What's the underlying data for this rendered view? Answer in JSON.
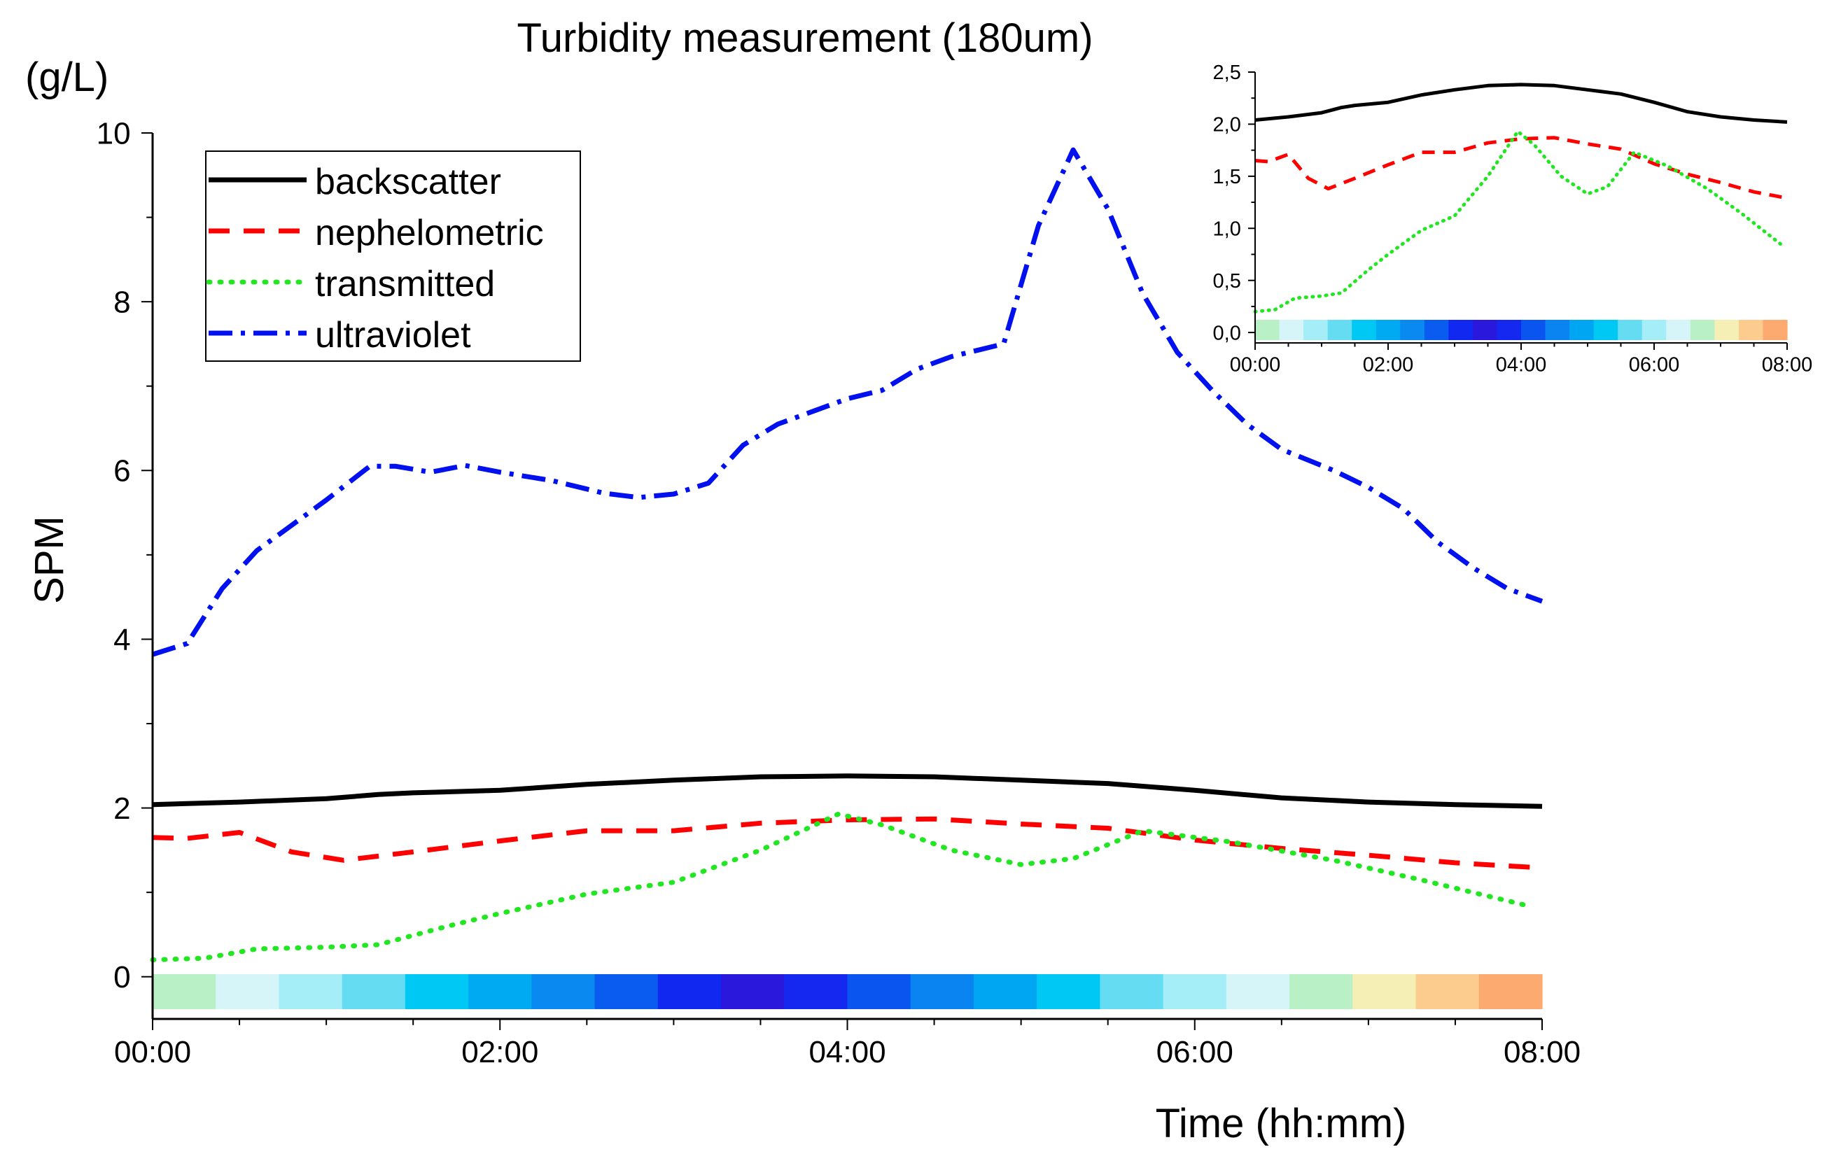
{
  "chart_data": [
    {
      "type": "line",
      "title": "Turbidity measurement (180um)",
      "ylabel": "SPM",
      "yunit": "(g/L)",
      "xlabel": "Time (hh:mm)",
      "xlim": [
        0,
        8
      ],
      "ylim": [
        -0.5,
        10
      ],
      "xticks": [
        0,
        2,
        4,
        6,
        8
      ],
      "xtick_labels": [
        "00:00",
        "02:00",
        "04:00",
        "06:00",
        "08:00"
      ],
      "yticks": [
        0,
        2,
        4,
        6,
        8,
        10
      ],
      "ytick_labels": [
        "0",
        "2",
        "4",
        "6",
        "8",
        "10"
      ],
      "legend_position": "top-left",
      "series": [
        {
          "name": "backscatter",
          "color": "#000000",
          "dash": "solid",
          "x": [
            0,
            0.5,
            1,
            1.3,
            1.5,
            2,
            2.5,
            3,
            3.5,
            4,
            4.5,
            5,
            5.5,
            6,
            6.5,
            7,
            7.5,
            8
          ],
          "values": [
            2.04,
            2.07,
            2.11,
            2.16,
            2.18,
            2.21,
            2.28,
            2.33,
            2.37,
            2.38,
            2.37,
            2.33,
            2.29,
            2.21,
            2.12,
            2.07,
            2.04,
            2.02
          ]
        },
        {
          "name": "nephelometric",
          "color": "#ff0000",
          "dash": "dash",
          "x": [
            0,
            0.2,
            0.5,
            0.8,
            1.1,
            1.5,
            2,
            2.5,
            3,
            3.5,
            4,
            4.5,
            5,
            5.5,
            6,
            6.5,
            7,
            7.5,
            8
          ],
          "values": [
            1.65,
            1.64,
            1.71,
            1.48,
            1.38,
            1.48,
            1.61,
            1.73,
            1.73,
            1.82,
            1.86,
            1.87,
            1.81,
            1.76,
            1.62,
            1.52,
            1.44,
            1.35,
            1.29
          ]
        },
        {
          "name": "transmitted",
          "color": "#22e622",
          "dash": "dot",
          "x": [
            0,
            0.3,
            0.6,
            1,
            1.3,
            1.7,
            2,
            2.5,
            3,
            3.5,
            3.95,
            4.2,
            4.6,
            5,
            5.3,
            5.7,
            6.2,
            6.8,
            7.3,
            7.9
          ],
          "values": [
            0.2,
            0.22,
            0.33,
            0.35,
            0.38,
            0.6,
            0.75,
            0.98,
            1.12,
            1.5,
            1.93,
            1.8,
            1.5,
            1.33,
            1.4,
            1.73,
            1.6,
            1.38,
            1.15,
            0.85
          ]
        },
        {
          "name": "ultraviolet",
          "color": "#0010ee",
          "dash": "dashdot",
          "x": [
            0,
            0.2,
            0.4,
            0.6,
            0.8,
            1,
            1.25,
            1.4,
            1.6,
            1.8,
            2,
            2.3,
            2.6,
            2.8,
            3,
            3.2,
            3.4,
            3.6,
            3.8,
            4,
            4.2,
            4.4,
            4.6,
            4.9,
            5.1,
            5.3,
            5.5,
            5.7,
            5.9,
            6.1,
            6.3,
            6.5,
            6.8,
            7,
            7.2,
            7.4,
            7.6,
            7.8,
            8
          ],
          "values": [
            3.82,
            3.95,
            4.6,
            5.05,
            5.35,
            5.65,
            6.05,
            6.05,
            5.98,
            6.06,
            5.98,
            5.88,
            5.73,
            5.68,
            5.72,
            5.85,
            6.3,
            6.55,
            6.7,
            6.85,
            6.95,
            7.2,
            7.35,
            7.5,
            8.9,
            9.8,
            9.1,
            8.1,
            7.4,
            6.95,
            6.55,
            6.25,
            6.0,
            5.8,
            5.55,
            5.15,
            4.85,
            4.6,
            4.45
          ]
        }
      ],
      "colorbar": [
        "#b9f0c6",
        "#d6f5f8",
        "#a6eef7",
        "#66dcf3",
        "#00c8f4",
        "#00aaf2",
        "#0a8af0",
        "#0a5cf0",
        "#1028f0",
        "#2a18dc",
        "#1428f0",
        "#0a55f0",
        "#0a84f0",
        "#00a6f2",
        "#00c8f4",
        "#66dcf3",
        "#a6eef7",
        "#d6f5f8",
        "#b9f0c6",
        "#f5efb5",
        "#fccc8f",
        "#fcaa70"
      ]
    },
    {
      "type": "line",
      "title": "",
      "xlim": [
        0,
        8
      ],
      "ylim": [
        -0.1,
        2.5
      ],
      "xticks": [
        0,
        2,
        4,
        6,
        8
      ],
      "xtick_labels": [
        "00:00",
        "02:00",
        "04:00",
        "06:00",
        "08:00"
      ],
      "yticks": [
        0,
        0.5,
        1,
        1.5,
        2,
        2.5
      ],
      "ytick_labels": [
        "0,0",
        "0,5",
        "1,0",
        "1,5",
        "2,0",
        "2,5"
      ],
      "series": [
        {
          "name": "backscatter",
          "color": "#000000",
          "dash": "solid",
          "x": [
            0,
            0.5,
            1,
            1.3,
            1.5,
            2,
            2.5,
            3,
            3.5,
            4,
            4.5,
            5,
            5.5,
            6,
            6.5,
            7,
            7.5,
            8
          ],
          "values": [
            2.04,
            2.07,
            2.11,
            2.16,
            2.18,
            2.21,
            2.28,
            2.33,
            2.37,
            2.38,
            2.37,
            2.33,
            2.29,
            2.21,
            2.12,
            2.07,
            2.04,
            2.02
          ]
        },
        {
          "name": "nephelometric",
          "color": "#ff0000",
          "dash": "dash",
          "x": [
            0,
            0.2,
            0.5,
            0.8,
            1.1,
            1.5,
            2,
            2.5,
            3,
            3.5,
            4,
            4.5,
            5,
            5.5,
            6,
            6.5,
            7,
            7.5,
            8
          ],
          "values": [
            1.65,
            1.64,
            1.71,
            1.48,
            1.38,
            1.48,
            1.61,
            1.73,
            1.73,
            1.82,
            1.86,
            1.87,
            1.81,
            1.76,
            1.62,
            1.52,
            1.44,
            1.35,
            1.29
          ]
        },
        {
          "name": "transmitted",
          "color": "#22e622",
          "dash": "dot",
          "x": [
            0,
            0.3,
            0.6,
            1,
            1.3,
            1.7,
            2,
            2.5,
            3,
            3.5,
            3.95,
            4.2,
            4.6,
            5,
            5.3,
            5.7,
            6.2,
            6.8,
            7.3,
            7.9
          ],
          "values": [
            0.2,
            0.22,
            0.33,
            0.35,
            0.38,
            0.6,
            0.75,
            0.98,
            1.12,
            1.5,
            1.93,
            1.8,
            1.5,
            1.33,
            1.4,
            1.73,
            1.6,
            1.38,
            1.15,
            0.85
          ]
        }
      ],
      "colorbar": [
        "#b9f0c6",
        "#d6f5f8",
        "#a6eef7",
        "#66dcf3",
        "#00c8f4",
        "#00aaf2",
        "#0a8af0",
        "#0a5cf0",
        "#1028f0",
        "#2a18dc",
        "#1428f0",
        "#0a55f0",
        "#0a84f0",
        "#00a6f2",
        "#00c8f4",
        "#66dcf3",
        "#a6eef7",
        "#d6f5f8",
        "#b9f0c6",
        "#f5efb5",
        "#fccc8f",
        "#fcaa70"
      ]
    }
  ]
}
